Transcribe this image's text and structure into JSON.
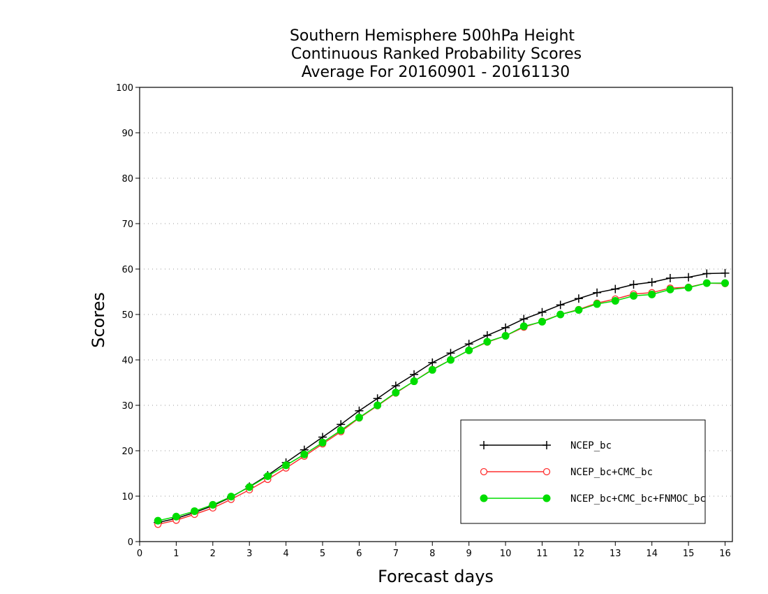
{
  "chart_data": {
    "type": "line",
    "title_lines": [
      "Southern Hemisphere 500hPa Height",
      "Continuous Ranked Probability Scores",
      "Average For 20160901 - 20161130"
    ],
    "xlabel": "Forecast days",
    "ylabel": "Scores",
    "xlim": [
      0,
      16.2
    ],
    "ylim": [
      0,
      100
    ],
    "x_ticks": [
      0,
      1,
      2,
      3,
      4,
      5,
      6,
      7,
      8,
      9,
      10,
      11,
      12,
      13,
      14,
      15,
      16
    ],
    "y_ticks": [
      0,
      10,
      20,
      30,
      40,
      50,
      60,
      70,
      80,
      90,
      100
    ],
    "grid": "horizontal dotted",
    "legend_position": "bottom-right",
    "x": [
      0.5,
      1.0,
      1.5,
      2.0,
      2.5,
      3.0,
      3.5,
      4.0,
      4.5,
      5.0,
      5.5,
      6.0,
      6.5,
      7.0,
      7.5,
      8.0,
      8.5,
      9.0,
      9.5,
      10.0,
      10.5,
      11.0,
      11.5,
      12.0,
      12.5,
      13.0,
      13.5,
      14.0,
      14.5,
      15.0,
      15.5,
      16.0
    ],
    "series": [
      {
        "name": "NCEP_bc",
        "color": "#000000",
        "marker": "plus",
        "values": [
          4.2,
          5.1,
          6.4,
          7.9,
          9.8,
          12.1,
          14.6,
          17.4,
          20.2,
          23.0,
          25.8,
          28.8,
          31.5,
          34.3,
          36.8,
          39.4,
          41.5,
          43.5,
          45.4,
          47.1,
          49.0,
          50.5,
          52.1,
          53.5,
          54.8,
          55.6,
          56.6,
          57.1,
          58.0,
          58.2,
          59.0,
          59.1
        ]
      },
      {
        "name": "NCEP_bc+CMC_bc",
        "color": "#ff3030",
        "marker": "open-circle",
        "values": [
          3.8,
          4.7,
          6.0,
          7.4,
          9.3,
          11.4,
          13.7,
          16.2,
          18.8,
          21.5,
          24.2,
          27.2,
          29.9,
          32.7,
          35.3,
          37.9,
          40.0,
          42.1,
          43.9,
          45.3,
          47.2,
          48.5,
          50.0,
          51.1,
          52.5,
          53.4,
          54.5,
          54.8,
          55.8,
          56.0,
          56.9,
          56.8
        ]
      },
      {
        "name": "NCEP_bc+CMC_bc+FNMOC_bc",
        "color": "#00dd00",
        "marker": "filled-circle",
        "values": [
          4.6,
          5.5,
          6.7,
          8.1,
          9.9,
          12.0,
          14.4,
          16.8,
          19.2,
          21.8,
          24.5,
          27.3,
          30.0,
          32.8,
          35.3,
          37.8,
          40.0,
          42.1,
          44.0,
          45.3,
          47.4,
          48.4,
          50.0,
          51.0,
          52.3,
          53.0,
          54.1,
          54.4,
          55.5,
          55.9,
          56.9,
          56.9
        ]
      }
    ]
  }
}
